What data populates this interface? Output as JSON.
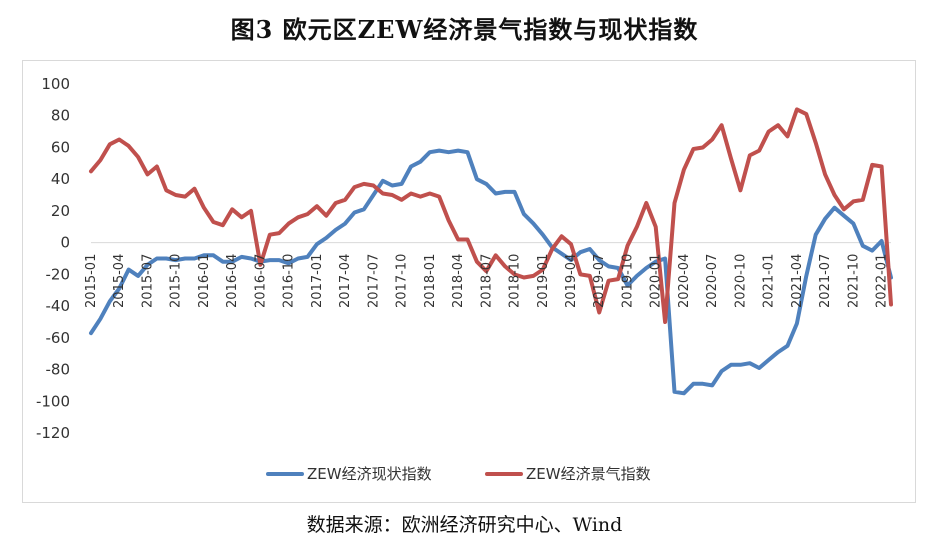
{
  "title": "图3 欧元区ZEW经济景气指数与现状指数",
  "source": "数据来源：欧洲经济研究中心、Wind",
  "colors": {
    "current": "#4f81bd",
    "sentiment": "#c0504d",
    "axis": "#d9d9d9"
  },
  "chart_data": {
    "type": "line",
    "ylim": [
      -120,
      100
    ],
    "yticks": [
      100,
      80,
      60,
      40,
      20,
      0,
      -20,
      -40,
      -60,
      -80,
      -100,
      -120
    ],
    "xticks": [
      "2015-01",
      "2015-04",
      "2015-07",
      "2015-10",
      "2016-01",
      "2016-04",
      "2016-07",
      "2016-10",
      "2017-01",
      "2017-04",
      "2017-07",
      "2017-10",
      "2018-01",
      "2018-04",
      "2018-07",
      "2018-10",
      "2019-01",
      "2019-04",
      "2019-07",
      "2019-10",
      "2020-01",
      "2020-04",
      "2020-07",
      "2020-10",
      "2021-01",
      "2021-04",
      "2021-07",
      "2021-10",
      "2022-01"
    ],
    "legend_position": "bottom",
    "series": [
      {
        "name": "ZEW经济现状指数",
        "color": "#4f81bd",
        "values": [
          -57,
          -48,
          -37,
          -29,
          -17,
          -21,
          -14,
          -10,
          -10,
          -11,
          -10,
          -10,
          -8,
          -8,
          -12,
          -12,
          -9,
          -10,
          -12,
          -11,
          -11,
          -13,
          -10,
          -9,
          -1,
          3,
          8,
          12,
          19,
          21,
          30,
          39,
          36,
          37,
          48,
          51,
          57,
          58,
          57,
          58,
          57,
          40,
          37,
          31,
          32,
          32,
          18,
          12,
          5,
          -3,
          -7,
          -11,
          -6,
          -4,
          -11,
          -15,
          -16,
          -27,
          -21,
          -16,
          -12,
          -10,
          -94,
          -95,
          -89,
          -89,
          -90,
          -81,
          -77,
          -77,
          -76,
          -79,
          -74,
          -69,
          -65,
          -51,
          -21,
          5,
          15,
          22,
          17,
          12,
          -2,
          -5,
          1,
          -22
        ]
      },
      {
        "name": "ZEW经济景气指数",
        "color": "#c0504d",
        "values": [
          45,
          52,
          62,
          65,
          61,
          54,
          43,
          48,
          33,
          30,
          29,
          34,
          22,
          13,
          11,
          21,
          16,
          20,
          -14,
          5,
          6,
          12,
          16,
          18,
          23,
          17,
          25,
          27,
          35,
          37,
          36,
          31,
          30,
          27,
          31,
          29,
          31,
          29,
          14,
          2,
          2,
          -12,
          -18,
          -8,
          -15,
          -20,
          -22,
          -21,
          -17,
          -4,
          4,
          -1,
          -20,
          -21,
          -44,
          -24,
          -23,
          -2,
          10,
          25,
          10,
          -50,
          25,
          46,
          59,
          60,
          65,
          74,
          53,
          33,
          55,
          58,
          70,
          74,
          67,
          84,
          81,
          63,
          43,
          30,
          21,
          26,
          27,
          49,
          48,
          -39
        ]
      }
    ]
  }
}
